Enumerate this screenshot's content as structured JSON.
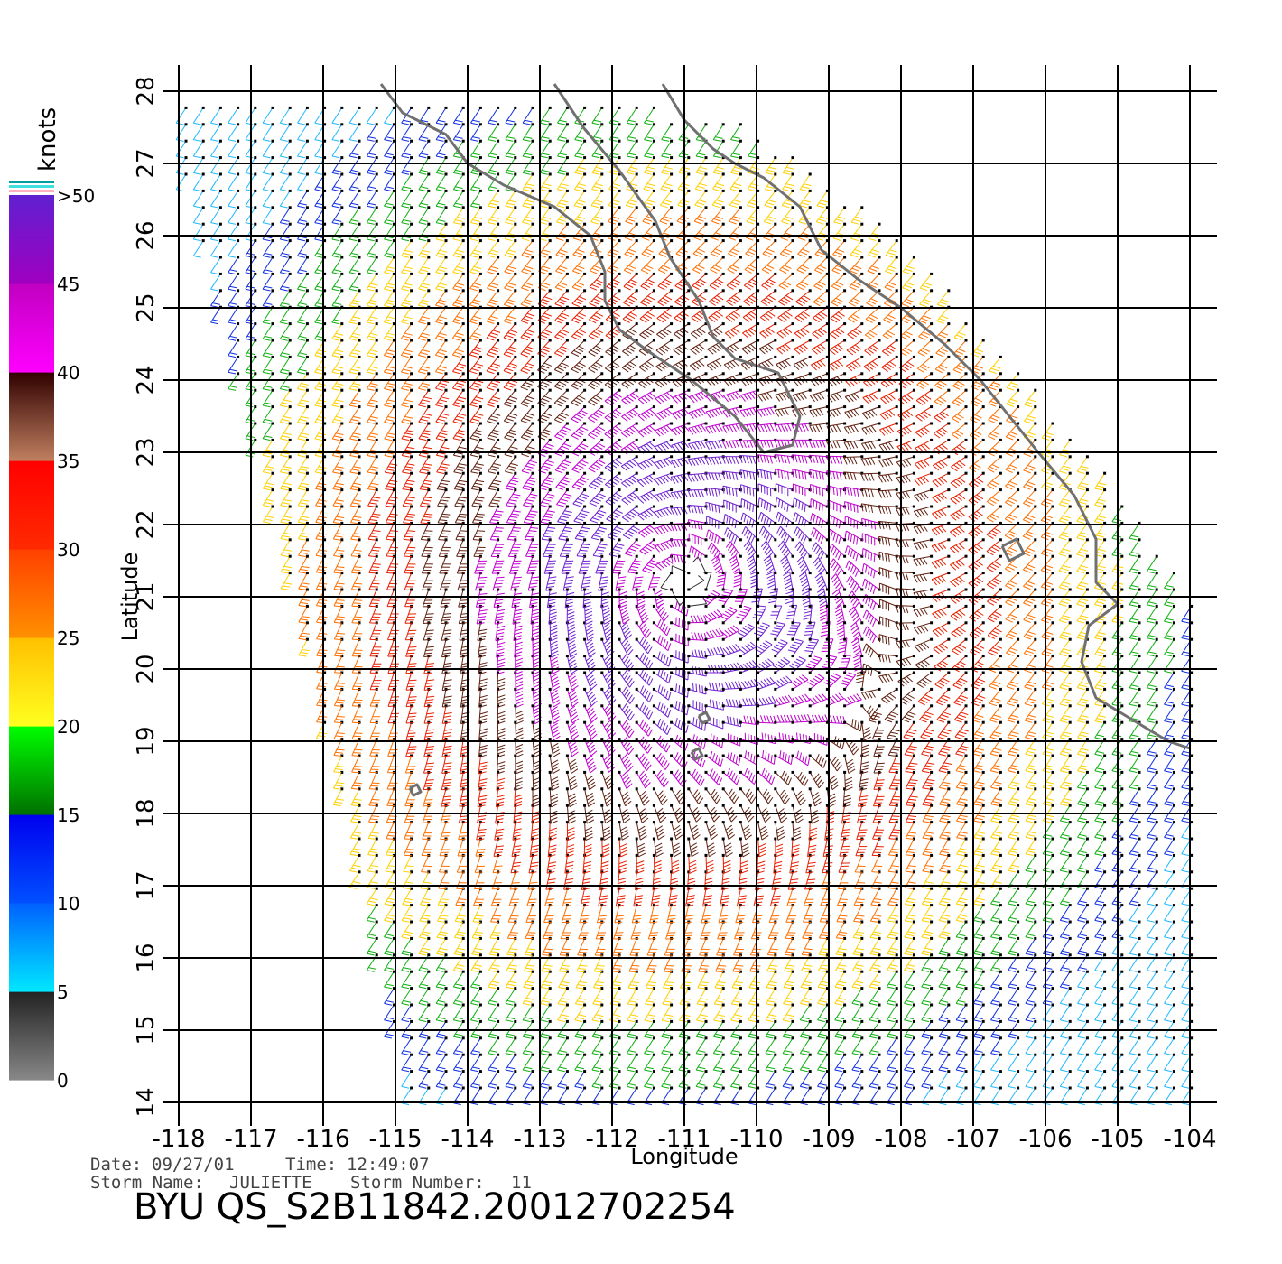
{
  "map": {
    "lon_range": [
      -118,
      -104
    ],
    "lat_range": [
      14,
      28
    ],
    "lon_ticks": [
      "-118",
      "-117",
      "-116",
      "-115",
      "-114",
      "-113",
      "-112",
      "-111",
      "-110",
      "-109",
      "-108",
      "-107",
      "-106",
      "-105",
      "-104"
    ],
    "lat_ticks": [
      "14",
      "15",
      "16",
      "17",
      "18",
      "19",
      "20",
      "21",
      "22",
      "23",
      "24",
      "25",
      "26",
      "27",
      "28"
    ],
    "xlabel": "Longitude",
    "ylabel": "Latitude",
    "grid": true,
    "coast_color": "#707070",
    "storm_center": {
      "lon": -111.0,
      "lat": 21.2
    }
  },
  "colorbar": {
    "unit": "knots",
    "labels": [
      ">50",
      "45",
      "40",
      "35",
      "30",
      "25",
      "20",
      "15",
      "10",
      "5",
      "0"
    ],
    "colors": {
      "band_0_5": [
        "#888888",
        "#222222"
      ],
      "band_5_10": [
        "#00e8ff",
        "#0060ff"
      ],
      "band_10_15": [
        "#0050ff",
        "#0000ee"
      ],
      "band_15_20": [
        "#007000",
        "#00ff00"
      ],
      "band_20_25": [
        "#ffff20",
        "#ffc000"
      ],
      "band_25_30": [
        "#ff9000",
        "#ff4000"
      ],
      "band_30_35": [
        "#ff2a00",
        "#ff0000"
      ],
      "band_35_40": [
        "#c08060",
        "#300000"
      ],
      "band_40_45": [
        "#ff00ff",
        "#c000c0"
      ],
      "band_45_50": [
        "#a000c0",
        "#6020d0"
      ]
    }
  },
  "footer": {
    "date_label": "Date:",
    "date": "09/27/01",
    "time_label": "Time:",
    "time": "12:49:07",
    "storm_name_label": "Storm Name:",
    "storm_name": "JULIETTE",
    "storm_number_label": "Storm Number:",
    "storm_number": "11",
    "title": "BYU QS_S2B11842.20012702254"
  }
}
